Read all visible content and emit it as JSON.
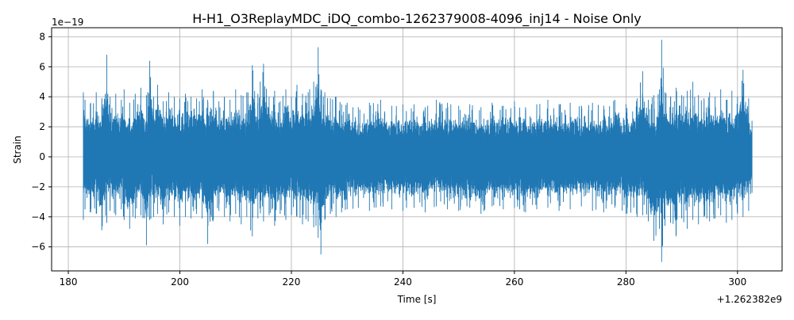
{
  "chart_data": {
    "type": "line",
    "title": "H-H1_O3ReplayMDC_iDQ_combo-1262379008-4096_inj14 - Noise Only",
    "xlabel": "Time [s]",
    "ylabel": "Strain",
    "x_offset_label": "+1.262382e9",
    "y_scale_label": "1e−19",
    "xlim": [
      177,
      308
    ],
    "ylim": [
      -7.6,
      8.6
    ],
    "x_ticks": [
      180,
      200,
      220,
      240,
      260,
      280,
      300
    ],
    "x_tick_labels": [
      "180",
      "200",
      "220",
      "240",
      "260",
      "280",
      "300"
    ],
    "y_ticks": [
      -6,
      -4,
      -2,
      0,
      2,
      4,
      6,
      8
    ],
    "y_tick_labels": [
      "−6",
      "−4",
      "−2",
      "0",
      "2",
      "4",
      "6",
      "8"
    ],
    "grid": true,
    "line_color": "#1f77b4",
    "series": [
      {
        "x": [
          182.7,
          183.0,
          184.0,
          185.0,
          186.0,
          186.9,
          187.5,
          188.5,
          189.5,
          190.0,
          191.0,
          192.0,
          193.0,
          194.0,
          194.6,
          195.3,
          196.0,
          197.0,
          198.0,
          199.0,
          200.0,
          201.0,
          202.0,
          203.0,
          204.0,
          205.0,
          206.0,
          207.0,
          208.0,
          209.0,
          210.0,
          211.0,
          212.0,
          213.0,
          214.0,
          215.0,
          216.0,
          217.0,
          218.0,
          219.0,
          220.0,
          221.0,
          222.0,
          223.0,
          224.0,
          224.8,
          225.3,
          226.0,
          227.0,
          228.0,
          229.0,
          230.0,
          232.0,
          234.0,
          236.0,
          238.0,
          240.0,
          242.0,
          244.0,
          246.0,
          248.0,
          250.0,
          252.0,
          254.0,
          256.0,
          258.0,
          260.0,
          262.0,
          264.0,
          266.0,
          268.0,
          270.0,
          272.0,
          274.0,
          276.0,
          278.0,
          280.0,
          282.0,
          283.0,
          284.0,
          285.0,
          286.0,
          286.4,
          287.0,
          288.0,
          289.0,
          290.0,
          291.0,
          292.0,
          293.0,
          294.0,
          295.0,
          296.0,
          297.0,
          298.0,
          299.0,
          300.0,
          301.0,
          302.0,
          302.6
        ],
        "upper": [
          4.3,
          3.8,
          3.6,
          4.3,
          3.9,
          6.8,
          4.0,
          4.2,
          3.8,
          4.5,
          3.6,
          4.2,
          4.6,
          4.1,
          6.4,
          4.0,
          4.8,
          3.7,
          4.3,
          4.0,
          3.9,
          4.2,
          4.0,
          3.9,
          4.5,
          3.8,
          4.4,
          3.7,
          4.0,
          3.8,
          4.5,
          4.1,
          4.3,
          6.1,
          4.2,
          6.2,
          4.0,
          4.4,
          3.7,
          4.5,
          4.0,
          4.8,
          4.2,
          4.3,
          5.0,
          7.3,
          4.5,
          4.3,
          3.9,
          4.0,
          3.5,
          3.6,
          3.3,
          3.6,
          3.8,
          3.4,
          3.5,
          3.5,
          3.3,
          3.8,
          3.6,
          3.4,
          3.5,
          3.3,
          3.6,
          3.4,
          3.7,
          3.3,
          3.5,
          3.8,
          3.5,
          3.6,
          3.4,
          3.6,
          3.4,
          3.8,
          3.5,
          3.9,
          5.7,
          3.8,
          4.1,
          4.5,
          7.8,
          4.3,
          4.0,
          4.6,
          4.1,
          4.4,
          5.0,
          4.1,
          3.9,
          4.3,
          4.0,
          4.5,
          3.8,
          4.4,
          4.0,
          5.8,
          3.9,
          2.4
        ],
        "lower": [
          -4.2,
          -3.5,
          -3.7,
          -3.8,
          -4.9,
          -4.4,
          -3.6,
          -3.9,
          -3.5,
          -4.2,
          -4.8,
          -4.1,
          -3.9,
          -5.9,
          -4.2,
          -4.0,
          -3.8,
          -4.5,
          -3.7,
          -4.0,
          -4.6,
          -4.0,
          -4.1,
          -3.8,
          -4.1,
          -5.8,
          -4.2,
          -3.6,
          -4.0,
          -4.3,
          -3.8,
          -4.5,
          -4.0,
          -5.3,
          -4.1,
          -4.3,
          -3.9,
          -4.6,
          -3.8,
          -4.2,
          -3.9,
          -4.0,
          -4.5,
          -4.3,
          -4.7,
          -5.4,
          -6.5,
          -4.2,
          -3.8,
          -4.0,
          -3.7,
          -3.5,
          -3.4,
          -3.6,
          -3.3,
          -3.5,
          -3.6,
          -3.4,
          -3.7,
          -3.3,
          -3.5,
          -3.6,
          -3.4,
          -3.8,
          -3.3,
          -3.5,
          -3.4,
          -3.7,
          -3.5,
          -3.4,
          -3.6,
          -3.5,
          -3.3,
          -3.6,
          -3.7,
          -3.4,
          -3.8,
          -4.0,
          -3.9,
          -4.3,
          -5.6,
          -4.8,
          -7.0,
          -4.6,
          -4.4,
          -5.3,
          -4.1,
          -4.8,
          -4.2,
          -4.5,
          -4.0,
          -4.3,
          -4.1,
          -3.9,
          -4.4,
          -4.2,
          -3.8,
          -4.0,
          -3.6,
          -2.4
        ]
      }
    ]
  }
}
